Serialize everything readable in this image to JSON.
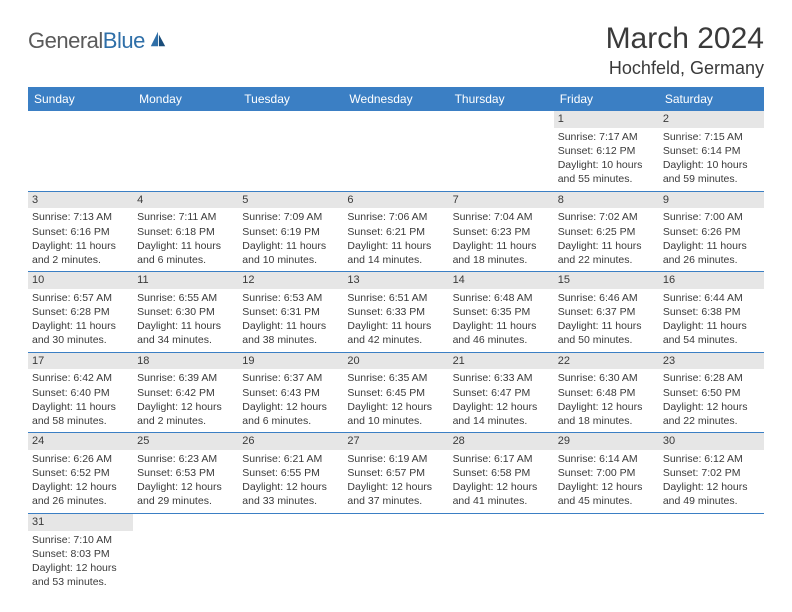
{
  "logo": {
    "general": "General",
    "blue": "Blue"
  },
  "title": "March 2024",
  "location": "Hochfeld, Germany",
  "colors": {
    "header_bar": "#3b7fc4",
    "header_text": "#ffffff",
    "daynum_bg": "#e6e6e6",
    "row_border": "#3b7fc4",
    "body_text": "#3a3a3a",
    "logo_gray": "#5a5a5a",
    "logo_blue": "#2f6fa8"
  },
  "weekdays": [
    "Sunday",
    "Monday",
    "Tuesday",
    "Wednesday",
    "Thursday",
    "Friday",
    "Saturday"
  ],
  "weeks": [
    [
      {
        "blank": true
      },
      {
        "blank": true
      },
      {
        "blank": true
      },
      {
        "blank": true
      },
      {
        "blank": true
      },
      {
        "n": "1",
        "sr": "Sunrise: 7:17 AM",
        "ss": "Sunset: 6:12 PM",
        "d1": "Daylight: 10 hours",
        "d2": "and 55 minutes."
      },
      {
        "n": "2",
        "sr": "Sunrise: 7:15 AM",
        "ss": "Sunset: 6:14 PM",
        "d1": "Daylight: 10 hours",
        "d2": "and 59 minutes."
      }
    ],
    [
      {
        "n": "3",
        "sr": "Sunrise: 7:13 AM",
        "ss": "Sunset: 6:16 PM",
        "d1": "Daylight: 11 hours",
        "d2": "and 2 minutes."
      },
      {
        "n": "4",
        "sr": "Sunrise: 7:11 AM",
        "ss": "Sunset: 6:18 PM",
        "d1": "Daylight: 11 hours",
        "d2": "and 6 minutes."
      },
      {
        "n": "5",
        "sr": "Sunrise: 7:09 AM",
        "ss": "Sunset: 6:19 PM",
        "d1": "Daylight: 11 hours",
        "d2": "and 10 minutes."
      },
      {
        "n": "6",
        "sr": "Sunrise: 7:06 AM",
        "ss": "Sunset: 6:21 PM",
        "d1": "Daylight: 11 hours",
        "d2": "and 14 minutes."
      },
      {
        "n": "7",
        "sr": "Sunrise: 7:04 AM",
        "ss": "Sunset: 6:23 PM",
        "d1": "Daylight: 11 hours",
        "d2": "and 18 minutes."
      },
      {
        "n": "8",
        "sr": "Sunrise: 7:02 AM",
        "ss": "Sunset: 6:25 PM",
        "d1": "Daylight: 11 hours",
        "d2": "and 22 minutes."
      },
      {
        "n": "9",
        "sr": "Sunrise: 7:00 AM",
        "ss": "Sunset: 6:26 PM",
        "d1": "Daylight: 11 hours",
        "d2": "and 26 minutes."
      }
    ],
    [
      {
        "n": "10",
        "sr": "Sunrise: 6:57 AM",
        "ss": "Sunset: 6:28 PM",
        "d1": "Daylight: 11 hours",
        "d2": "and 30 minutes."
      },
      {
        "n": "11",
        "sr": "Sunrise: 6:55 AM",
        "ss": "Sunset: 6:30 PM",
        "d1": "Daylight: 11 hours",
        "d2": "and 34 minutes."
      },
      {
        "n": "12",
        "sr": "Sunrise: 6:53 AM",
        "ss": "Sunset: 6:31 PM",
        "d1": "Daylight: 11 hours",
        "d2": "and 38 minutes."
      },
      {
        "n": "13",
        "sr": "Sunrise: 6:51 AM",
        "ss": "Sunset: 6:33 PM",
        "d1": "Daylight: 11 hours",
        "d2": "and 42 minutes."
      },
      {
        "n": "14",
        "sr": "Sunrise: 6:48 AM",
        "ss": "Sunset: 6:35 PM",
        "d1": "Daylight: 11 hours",
        "d2": "and 46 minutes."
      },
      {
        "n": "15",
        "sr": "Sunrise: 6:46 AM",
        "ss": "Sunset: 6:37 PM",
        "d1": "Daylight: 11 hours",
        "d2": "and 50 minutes."
      },
      {
        "n": "16",
        "sr": "Sunrise: 6:44 AM",
        "ss": "Sunset: 6:38 PM",
        "d1": "Daylight: 11 hours",
        "d2": "and 54 minutes."
      }
    ],
    [
      {
        "n": "17",
        "sr": "Sunrise: 6:42 AM",
        "ss": "Sunset: 6:40 PM",
        "d1": "Daylight: 11 hours",
        "d2": "and 58 minutes."
      },
      {
        "n": "18",
        "sr": "Sunrise: 6:39 AM",
        "ss": "Sunset: 6:42 PM",
        "d1": "Daylight: 12 hours",
        "d2": "and 2 minutes."
      },
      {
        "n": "19",
        "sr": "Sunrise: 6:37 AM",
        "ss": "Sunset: 6:43 PM",
        "d1": "Daylight: 12 hours",
        "d2": "and 6 minutes."
      },
      {
        "n": "20",
        "sr": "Sunrise: 6:35 AM",
        "ss": "Sunset: 6:45 PM",
        "d1": "Daylight: 12 hours",
        "d2": "and 10 minutes."
      },
      {
        "n": "21",
        "sr": "Sunrise: 6:33 AM",
        "ss": "Sunset: 6:47 PM",
        "d1": "Daylight: 12 hours",
        "d2": "and 14 minutes."
      },
      {
        "n": "22",
        "sr": "Sunrise: 6:30 AM",
        "ss": "Sunset: 6:48 PM",
        "d1": "Daylight: 12 hours",
        "d2": "and 18 minutes."
      },
      {
        "n": "23",
        "sr": "Sunrise: 6:28 AM",
        "ss": "Sunset: 6:50 PM",
        "d1": "Daylight: 12 hours",
        "d2": "and 22 minutes."
      }
    ],
    [
      {
        "n": "24",
        "sr": "Sunrise: 6:26 AM",
        "ss": "Sunset: 6:52 PM",
        "d1": "Daylight: 12 hours",
        "d2": "and 26 minutes."
      },
      {
        "n": "25",
        "sr": "Sunrise: 6:23 AM",
        "ss": "Sunset: 6:53 PM",
        "d1": "Daylight: 12 hours",
        "d2": "and 29 minutes."
      },
      {
        "n": "26",
        "sr": "Sunrise: 6:21 AM",
        "ss": "Sunset: 6:55 PM",
        "d1": "Daylight: 12 hours",
        "d2": "and 33 minutes."
      },
      {
        "n": "27",
        "sr": "Sunrise: 6:19 AM",
        "ss": "Sunset: 6:57 PM",
        "d1": "Daylight: 12 hours",
        "d2": "and 37 minutes."
      },
      {
        "n": "28",
        "sr": "Sunrise: 6:17 AM",
        "ss": "Sunset: 6:58 PM",
        "d1": "Daylight: 12 hours",
        "d2": "and 41 minutes."
      },
      {
        "n": "29",
        "sr": "Sunrise: 6:14 AM",
        "ss": "Sunset: 7:00 PM",
        "d1": "Daylight: 12 hours",
        "d2": "and 45 minutes."
      },
      {
        "n": "30",
        "sr": "Sunrise: 6:12 AM",
        "ss": "Sunset: 7:02 PM",
        "d1": "Daylight: 12 hours",
        "d2": "and 49 minutes."
      }
    ],
    [
      {
        "n": "31",
        "sr": "Sunrise: 7:10 AM",
        "ss": "Sunset: 8:03 PM",
        "d1": "Daylight: 12 hours",
        "d2": "and 53 minutes."
      },
      {
        "blank": true
      },
      {
        "blank": true
      },
      {
        "blank": true
      },
      {
        "blank": true
      },
      {
        "blank": true
      },
      {
        "blank": true
      }
    ]
  ]
}
